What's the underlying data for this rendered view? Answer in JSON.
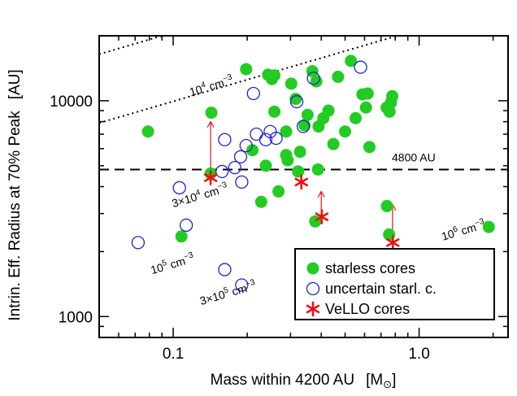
{
  "chart_data": {
    "type": "scatter",
    "xlabel": "Mass within 4200 AU",
    "xlabel_unit": "[M",
    "xlabel_unit_sub": "⊙",
    "xlabel_unit_close": "]",
    "ylabel": "Intrin. Eff. Radius at 70% Peak",
    "ylabel_unit": "[AU]",
    "x_scale": "log",
    "y_scale": "log",
    "xlim": [
      0.05,
      2.3
    ],
    "ylim": [
      800,
      20000
    ],
    "x_ticks": [
      {
        "value": 0.1,
        "label": "0.1"
      },
      {
        "value": 1.0,
        "label": "1.0"
      }
    ],
    "y_ticks": [
      {
        "value": 1000,
        "label": "1000"
      },
      {
        "value": 10000,
        "label": "10000"
      }
    ],
    "reference_line": {
      "y": 4800,
      "label": "4800 AU",
      "style": "dashed"
    },
    "density_lines": [
      {
        "label_main": "10",
        "label_sup": "4",
        "label_unit": " cm",
        "label_unit_sup": "−3",
        "label_x": 0.118,
        "label_y": 10500,
        "offset": 1.0
      },
      {
        "label_main": "3×10",
        "label_sup": "4",
        "label_unit": " cm",
        "label_unit_sup": "−3",
        "label_x": 0.1,
        "label_y": 3200,
        "offset": 0.48
      },
      {
        "label_main": "10",
        "label_sup": "5",
        "label_unit": " cm",
        "label_unit_sup": "−3",
        "label_x": 0.082,
        "label_y": 1570,
        "offset": 0.296
      },
      {
        "label_main": "3×10",
        "label_sup": "5",
        "label_unit": " cm",
        "label_unit_sup": "−3",
        "label_x": 0.13,
        "label_y": 1130,
        "offset": 0.19
      },
      {
        "label_main": "10",
        "label_sup": "6",
        "label_unit": " cm",
        "label_unit_sup": "−3",
        "label_x": 1.25,
        "label_y": 2250,
        "offset": 0.13
      }
    ],
    "series": [
      {
        "name": "starless cores",
        "marker": "filled-circle",
        "color": "#22cc22",
        "points": [
          [
            0.079,
            7200
          ],
          [
            0.108,
            2350
          ],
          [
            0.143,
            8800
          ],
          [
            0.198,
            14000
          ],
          [
            0.21,
            5900
          ],
          [
            0.228,
            3400
          ],
          [
            0.238,
            5000
          ],
          [
            0.243,
            13200
          ],
          [
            0.252,
            12600
          ],
          [
            0.258,
            13100
          ],
          [
            0.258,
            8900
          ],
          [
            0.268,
            3800
          ],
          [
            0.288,
            7200
          ],
          [
            0.288,
            5600
          ],
          [
            0.292,
            5300
          ],
          [
            0.302,
            12000
          ],
          [
            0.315,
            10200
          ],
          [
            0.322,
            4700
          ],
          [
            0.328,
            5800
          ],
          [
            0.342,
            7700
          ],
          [
            0.352,
            8600
          ],
          [
            0.368,
            13700
          ],
          [
            0.382,
            12300
          ],
          [
            0.388,
            4800
          ],
          [
            0.39,
            7600
          ],
          [
            0.408,
            8300
          ],
          [
            0.428,
            9000
          ],
          [
            0.448,
            6300
          ],
          [
            0.468,
            12900
          ],
          [
            0.5,
            7200
          ],
          [
            0.528,
            15300
          ],
          [
            0.552,
            8300
          ],
          [
            0.588,
            10700
          ],
          [
            0.608,
            9300
          ],
          [
            0.618,
            10800
          ],
          [
            0.628,
            6100
          ],
          [
            0.738,
            9300
          ],
          [
            0.758,
            8900
          ],
          [
            0.768,
            9800
          ],
          [
            0.778,
            10500
          ],
          [
            0.74,
            3250
          ],
          [
            0.755,
            2400
          ],
          [
            1.92,
            2600
          ],
          [
            0.378,
            2760
          ],
          [
            0.142,
            4600
          ]
        ]
      },
      {
        "name": "uncertain starl. c.",
        "marker": "open-circle",
        "color": "#2222cc",
        "points": [
          [
            0.072,
            2200
          ],
          [
            0.106,
            3950
          ],
          [
            0.113,
            2650
          ],
          [
            0.158,
            4700
          ],
          [
            0.162,
            6600
          ],
          [
            0.178,
            4900
          ],
          [
            0.188,
            5500
          ],
          [
            0.19,
            4200
          ],
          [
            0.198,
            6200
          ],
          [
            0.212,
            10800
          ],
          [
            0.218,
            7000
          ],
          [
            0.238,
            6600
          ],
          [
            0.248,
            7200
          ],
          [
            0.262,
            6700
          ],
          [
            0.318,
            9900
          ],
          [
            0.338,
            7600
          ],
          [
            0.372,
            12700
          ],
          [
            0.162,
            1650
          ],
          [
            0.19,
            1400
          ],
          [
            0.578,
            14300
          ]
        ]
      },
      {
        "name": "VeLLO cores",
        "marker": "asterisk",
        "color": "#ee1111",
        "points": [
          [
            0.142,
            4400
          ],
          [
            0.332,
            4200
          ],
          [
            0.402,
            2900
          ],
          [
            0.782,
            2200
          ]
        ]
      }
    ],
    "arrows": [
      {
        "from": [
          0.142,
          4600
        ],
        "to": [
          0.142,
          8000
        ]
      },
      {
        "from": [
          0.33,
          4600
        ],
        "to": [
          0.33,
          4950
        ]
      },
      {
        "from": [
          0.4,
          3000
        ],
        "to": [
          0.4,
          3800
        ]
      },
      {
        "from": [
          0.78,
          2300
        ],
        "to": [
          0.78,
          3300
        ]
      }
    ],
    "legend": {
      "placement": "bottom-right",
      "entries": [
        "starless cores",
        "uncertain starl. c.",
        "VeLLO cores"
      ]
    }
  }
}
